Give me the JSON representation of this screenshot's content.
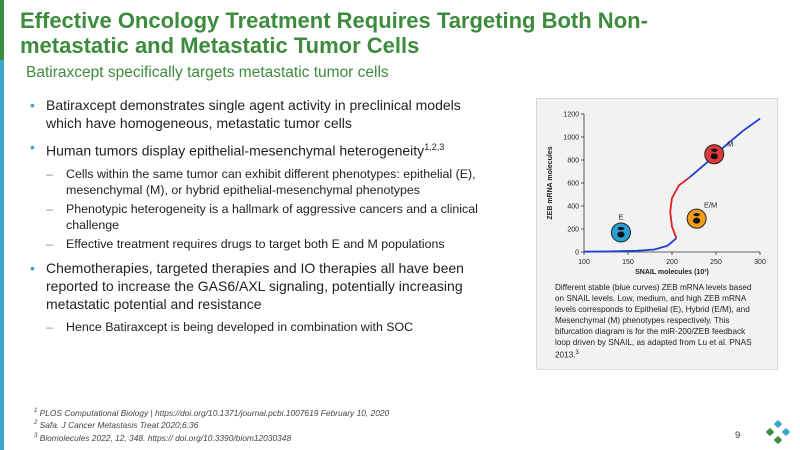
{
  "slide": {
    "title": "Effective Oncology Treatment Requires Targeting Both Non-metastatic and Metastatic Tumor Cells",
    "subtitle": "Batiraxcept specifically targets metastatic tumor cells",
    "bullets": [
      {
        "text": "Batiraxcept demonstrates single agent activity in preclinical models which have homogeneous, metastatic tumor cells",
        "sup": ""
      },
      {
        "text": "Human tumors display epithelial-mesenchymal heterogeneity",
        "sup": "1,2,3",
        "subs": [
          "Cells within the same tumor can exhibit different phenotypes: epithelial (E), mesenchymal (M), or hybrid epithelial-mesenchymal phenotypes",
          "Phenotypic heterogeneity is a hallmark of aggressive cancers and a clinical challenge",
          "Effective treatment requires drugs to target both E and M populations"
        ]
      },
      {
        "text": "Chemotherapies, targeted therapies and IO therapies all have been reported to increase the GAS6/AXL signaling, potentially increasing metastatic potential and resistance",
        "sup": "",
        "subs": [
          "Hence Batiraxcept is being developed in combination with SOC"
        ]
      }
    ],
    "caption": {
      "text": "Different stable (blue curves) ZEB mRNA levels based on SNAIL levels. Low, medium, and high ZEB mRNA levels corresponds to Epithelial (E), Hybrid (E/M), and Mesenchymal (M) phenotypes respectively. This bifurcation diagram is for the miR-200/ZEB feedback loop driven by SNAIL, as adapted from Lu et al. PNAS 2013.",
      "sup": "3"
    },
    "footnotes": [
      {
        "num": "1",
        "text": "PLOS Computational Biology | https://doi.org/10.1371/journal.pcbi.1007619  February 10, 2020"
      },
      {
        "num": "2",
        "text": "Safa. J Cancer Metastasis Treat 2020;6:36"
      },
      {
        "num": "3",
        "text": "Biomolecules 2022, 12, 348. https:// doi.org/10.3390/biom12030348"
      }
    ],
    "page_number": "9",
    "colors": {
      "title_green": "#3d8b3d",
      "bullet_blue": "#3aa6c7",
      "stable_curve": "#1f3fd6",
      "unstable_curve": "#e02020"
    }
  },
  "chart_data": {
    "type": "line",
    "xlabel": "SNAIL molecules (10³)",
    "ylabel": "ZEB mRNA molecules",
    "xlim": [
      100,
      300
    ],
    "ylim": [
      0,
      1200
    ],
    "xticks": [
      "100",
      "150",
      "200",
      "250",
      "300"
    ],
    "yticks": [
      "0",
      "200",
      "400",
      "600",
      "800",
      "1000",
      "1200"
    ],
    "series": [
      {
        "style": "stable",
        "color": "#1f3fd6",
        "x": [
          100,
          130,
          160,
          180,
          195,
          205
        ],
        "y": [
          3,
          5,
          10,
          22,
          55,
          120
        ]
      },
      {
        "style": "unstable",
        "color": "#e02020",
        "x": [
          205,
          200,
          198,
          200,
          208,
          220
        ],
        "y": [
          120,
          220,
          350,
          470,
          580,
          650
        ]
      },
      {
        "style": "stable",
        "color": "#1f3fd6",
        "x": [
          220,
          240,
          260,
          280,
          300
        ],
        "y": [
          650,
          780,
          920,
          1050,
          1160
        ]
      }
    ],
    "markers": [
      {
        "label": "E",
        "x": 142,
        "y": 170,
        "color": "#2a9fd6"
      },
      {
        "label": "E/M",
        "x": 228,
        "y": 290,
        "color": "#f0a018"
      },
      {
        "label": "M",
        "x": 248,
        "y": 850,
        "color": "#e03838"
      }
    ]
  }
}
